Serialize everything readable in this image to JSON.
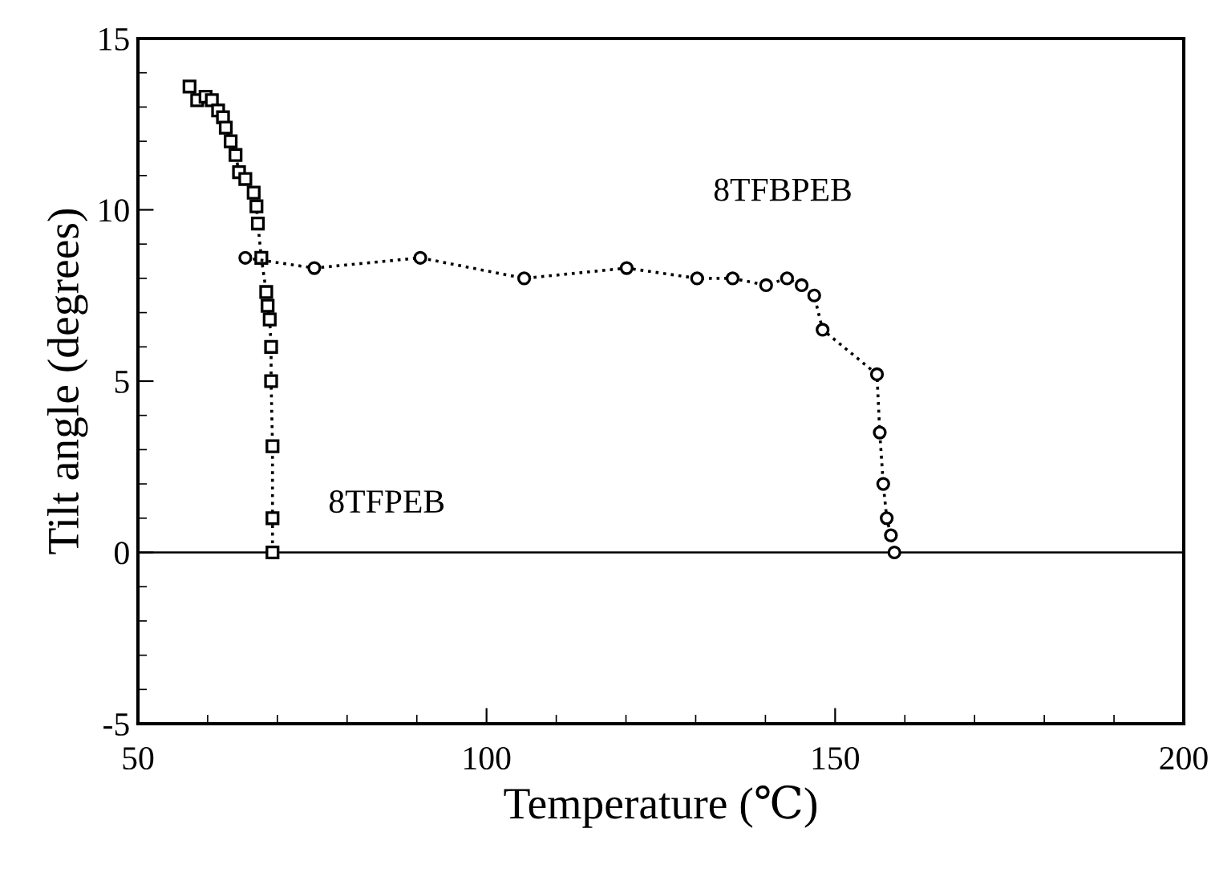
{
  "chart_data": {
    "type": "line",
    "xlabel": "Temperature (℃)",
    "ylabel": "Tilt angle (degrees)",
    "xlim": [
      50,
      200
    ],
    "xticks": [
      50,
      100,
      150,
      200
    ],
    "ylim": [
      -5,
      15
    ],
    "yticks": [
      -5,
      0,
      5,
      10,
      15
    ],
    "grid": false,
    "legend": false,
    "line_style": "dotted",
    "series": [
      {
        "marker": "square",
        "color": "#000000",
        "x": [
          57.4,
          58.5,
          59.7,
          60.6,
          61.5,
          62.2,
          62.6,
          63.3,
          64.0,
          64.5,
          65.4,
          66.6,
          67.0,
          67.2,
          67.7,
          68.4,
          68.6,
          68.9,
          69.1,
          69.1,
          69.3,
          69.3,
          69.3
        ],
        "values": [
          13.6,
          13.2,
          13.3,
          13.2,
          12.9,
          12.7,
          12.4,
          12.0,
          11.6,
          11.1,
          10.9,
          10.5,
          10.1,
          9.6,
          8.6,
          7.6,
          7.2,
          6.8,
          6.0,
          5.0,
          3.1,
          1.0,
          0
        ]
      },
      {
        "marker": "circle",
        "color": "#000000",
        "x": [
          65.4,
          75.3,
          90.5,
          105.4,
          120.1,
          130.2,
          135.3,
          140.1,
          143.1,
          145.2,
          147.0,
          148.2,
          156.0,
          156.4,
          156.9,
          157.4,
          158.0,
          158.5
        ],
        "values": [
          8.6,
          8.3,
          8.6,
          8.0,
          8.3,
          8.0,
          8.0,
          7.8,
          8.0,
          7.8,
          7.5,
          6.5,
          5.2,
          3.5,
          2.0,
          1.0,
          0.5,
          0
        ]
      }
    ],
    "ref_lines": [
      {
        "axis": "y",
        "value": 0,
        "color": "#000000",
        "line_style": "solid"
      }
    ],
    "annotations": [
      "8TFBPEB",
      "8TFPEB"
    ]
  }
}
